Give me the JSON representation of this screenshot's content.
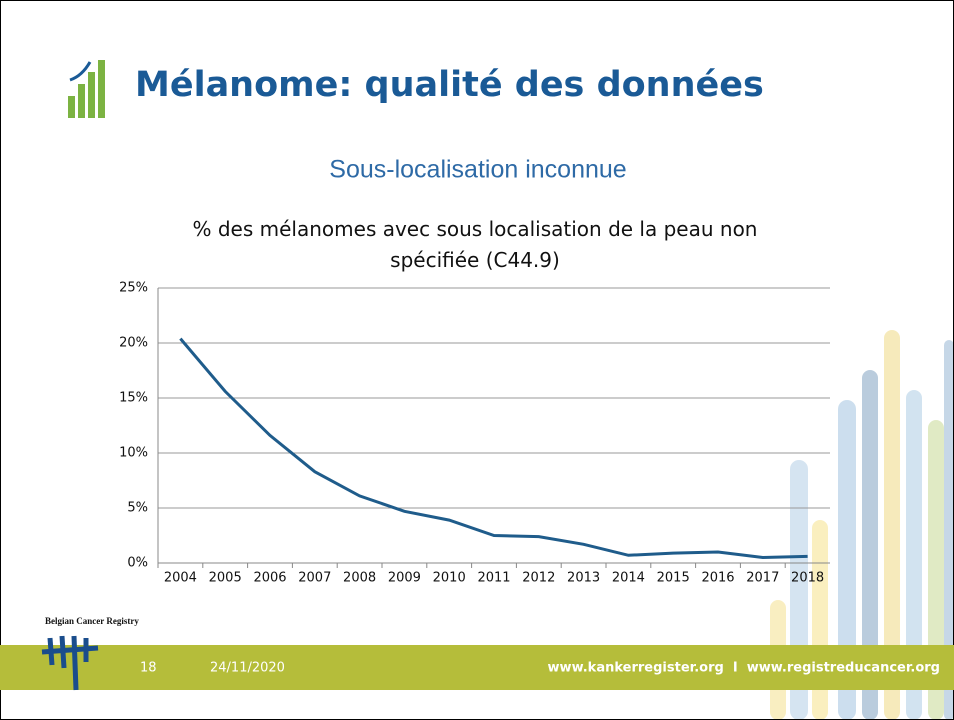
{
  "slide": {
    "title": "Mélanome: qualité des données",
    "subtitle": "Sous-localisation inconnue",
    "logo_text": "Belgian Cancer Registry",
    "page_number": "18",
    "date": "24/11/2020",
    "footer_url": "www.kankerregister.org  I  www.registreducancer.org"
  },
  "chart_data": {
    "type": "line",
    "title": "% des mélanomes avec sous localisation de la peau non spécifiée (C44.9)",
    "categories": [
      "2004",
      "2005",
      "2006",
      "2007",
      "2008",
      "2009",
      "2010",
      "2011",
      "2012",
      "2013",
      "2014",
      "2015",
      "2016",
      "2017",
      "2018"
    ],
    "values": [
      20.4,
      15.6,
      11.6,
      8.3,
      6.1,
      4.7,
      3.9,
      2.5,
      2.4,
      1.7,
      0.7,
      0.9,
      1.0,
      0.5,
      0.6
    ],
    "color": "#1f5c8b",
    "ylim": [
      0,
      25
    ],
    "yticks": [
      {
        "value": 0,
        "label": "0%"
      },
      {
        "value": 5,
        "label": "5%"
      },
      {
        "value": 10,
        "label": "10%"
      },
      {
        "value": 15,
        "label": "15%"
      },
      {
        "value": 20,
        "label": "20%"
      },
      {
        "value": 25,
        "label": "25%"
      }
    ],
    "grid": true
  }
}
